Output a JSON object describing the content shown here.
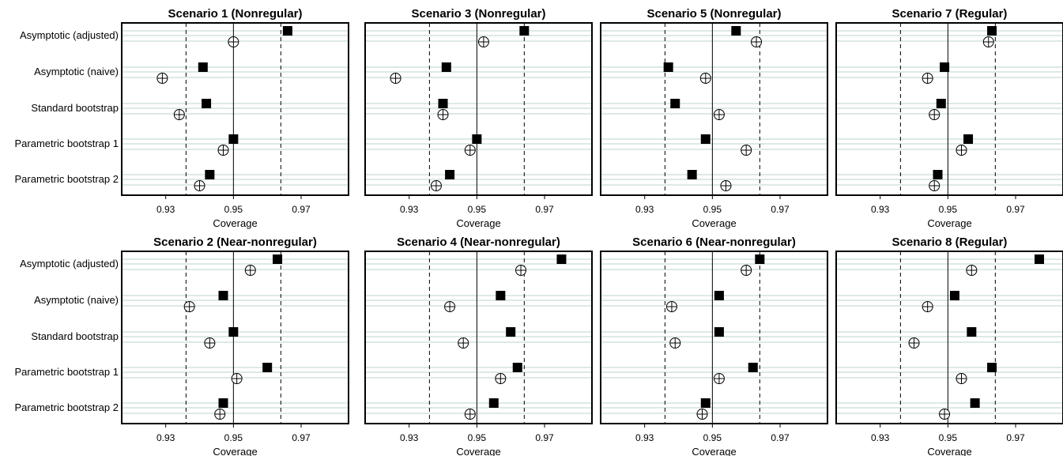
{
  "colors": {
    "band": "#dde9e5",
    "frame": "#000000",
    "marker_fill": "#000000",
    "open_marker_fill": "#ffffff"
  },
  "legend_symbols": {
    "filled_square": "filled-square-marker",
    "open_circle_cross": "open-circle-crosshair-marker"
  },
  "chart_data": [
    {
      "type": "scatter",
      "panel": "scenario-1",
      "title": "Scenario 1 (Nonregular)",
      "xlabel": "Coverage",
      "xlim": [
        0.917,
        0.984
      ],
      "xticks": [
        0.93,
        0.95,
        0.97
      ],
      "reference_lines": {
        "solid": 0.95,
        "dashed": [
          0.936,
          0.964
        ]
      },
      "categories": [
        "Asymptotic (adjusted)",
        "Asymptotic (naive)",
        "Standard bootstrap",
        "Parametric bootstrap 1",
        "Parametric bootstrap 2"
      ],
      "series": [
        {
          "name": "filled-square",
          "values": [
            0.966,
            0.941,
            0.942,
            0.95,
            0.943
          ]
        },
        {
          "name": "open-circle",
          "values": [
            0.95,
            0.929,
            0.934,
            0.947,
            0.94
          ]
        }
      ]
    },
    {
      "type": "scatter",
      "panel": "scenario-3",
      "title": "Scenario 3 (Nonregular)",
      "xlabel": "Coverage",
      "xlim": [
        0.917,
        0.984
      ],
      "xticks": [
        0.93,
        0.95,
        0.97
      ],
      "reference_lines": {
        "solid": 0.95,
        "dashed": [
          0.936,
          0.964
        ]
      },
      "categories": [
        "Asymptotic (adjusted)",
        "Asymptotic (naive)",
        "Standard bootstrap",
        "Parametric bootstrap 1",
        "Parametric bootstrap 2"
      ],
      "series": [
        {
          "name": "filled-square",
          "values": [
            0.964,
            0.941,
            0.94,
            0.95,
            0.942
          ]
        },
        {
          "name": "open-circle",
          "values": [
            0.952,
            0.926,
            0.94,
            0.948,
            0.938
          ]
        }
      ]
    },
    {
      "type": "scatter",
      "panel": "scenario-5",
      "title": "Scenario 5 (Nonregular)",
      "xlabel": "Coverage",
      "xlim": [
        0.917,
        0.984
      ],
      "xticks": [
        0.93,
        0.95,
        0.97
      ],
      "reference_lines": {
        "solid": 0.95,
        "dashed": [
          0.936,
          0.964
        ]
      },
      "categories": [
        "Asymptotic (adjusted)",
        "Asymptotic (naive)",
        "Standard bootstrap",
        "Parametric bootstrap 1",
        "Parametric bootstrap 2"
      ],
      "series": [
        {
          "name": "filled-square",
          "values": [
            0.957,
            0.937,
            0.939,
            0.948,
            0.944
          ]
        },
        {
          "name": "open-circle",
          "values": [
            0.963,
            0.948,
            0.952,
            0.96,
            0.954
          ]
        }
      ]
    },
    {
      "type": "scatter",
      "panel": "scenario-7",
      "title": "Scenario 7 (Regular)",
      "xlabel": "Coverage",
      "xlim": [
        0.917,
        0.984
      ],
      "xticks": [
        0.93,
        0.95,
        0.97
      ],
      "reference_lines": {
        "solid": 0.95,
        "dashed": [
          0.936,
          0.964
        ]
      },
      "categories": [
        "Asymptotic (adjusted)",
        "Asymptotic (naive)",
        "Standard bootstrap",
        "Parametric bootstrap 1",
        "Parametric bootstrap 2"
      ],
      "series": [
        {
          "name": "filled-square",
          "values": [
            0.963,
            0.949,
            0.948,
            0.956,
            0.947
          ]
        },
        {
          "name": "open-circle",
          "values": [
            0.962,
            0.944,
            0.946,
            0.954,
            0.946
          ]
        }
      ]
    },
    {
      "type": "scatter",
      "panel": "scenario-2",
      "title": "Scenario 2 (Near-nonregular)",
      "xlabel": "Coverage",
      "xlim": [
        0.917,
        0.984
      ],
      "xticks": [
        0.93,
        0.95,
        0.97
      ],
      "reference_lines": {
        "solid": 0.95,
        "dashed": [
          0.936,
          0.964
        ]
      },
      "categories": [
        "Asymptotic (adjusted)",
        "Asymptotic (naive)",
        "Standard bootstrap",
        "Parametric bootstrap 1",
        "Parametric bootstrap 2"
      ],
      "series": [
        {
          "name": "filled-square",
          "values": [
            0.963,
            0.947,
            0.95,
            0.96,
            0.947
          ]
        },
        {
          "name": "open-circle",
          "values": [
            0.955,
            0.937,
            0.943,
            0.951,
            0.946
          ]
        }
      ]
    },
    {
      "type": "scatter",
      "panel": "scenario-4",
      "title": "Scenario 4 (Near-nonregular)",
      "xlabel": "Coverage",
      "xlim": [
        0.917,
        0.984
      ],
      "xticks": [
        0.93,
        0.95,
        0.97
      ],
      "reference_lines": {
        "solid": 0.95,
        "dashed": [
          0.936,
          0.964
        ]
      },
      "categories": [
        "Asymptotic (adjusted)",
        "Asymptotic (naive)",
        "Standard bootstrap",
        "Parametric bootstrap 1",
        "Parametric bootstrap 2"
      ],
      "series": [
        {
          "name": "filled-square",
          "values": [
            0.975,
            0.957,
            0.96,
            0.962,
            0.955
          ]
        },
        {
          "name": "open-circle",
          "values": [
            0.963,
            0.942,
            0.946,
            0.957,
            0.948
          ]
        }
      ]
    },
    {
      "type": "scatter",
      "panel": "scenario-6",
      "title": "Scenario 6 (Near-nonregular)",
      "xlabel": "Coverage",
      "xlim": [
        0.917,
        0.984
      ],
      "xticks": [
        0.93,
        0.95,
        0.97
      ],
      "reference_lines": {
        "solid": 0.95,
        "dashed": [
          0.936,
          0.964
        ]
      },
      "categories": [
        "Asymptotic (adjusted)",
        "Asymptotic (naive)",
        "Standard bootstrap",
        "Parametric bootstrap 1",
        "Parametric bootstrap 2"
      ],
      "series": [
        {
          "name": "filled-square",
          "values": [
            0.964,
            0.952,
            0.952,
            0.962,
            0.948
          ]
        },
        {
          "name": "open-circle",
          "values": [
            0.96,
            0.938,
            0.939,
            0.952,
            0.947
          ]
        }
      ]
    },
    {
      "type": "scatter",
      "panel": "scenario-8",
      "title": "Scenario 8 (Regular)",
      "xlabel": "Coverage",
      "xlim": [
        0.917,
        0.984
      ],
      "xticks": [
        0.93,
        0.95,
        0.97
      ],
      "reference_lines": {
        "solid": 0.95,
        "dashed": [
          0.936,
          0.964
        ]
      },
      "categories": [
        "Asymptotic (adjusted)",
        "Asymptotic (naive)",
        "Standard bootstrap",
        "Parametric bootstrap 1",
        "Parametric bootstrap 2"
      ],
      "series": [
        {
          "name": "filled-square",
          "values": [
            0.977,
            0.952,
            0.957,
            0.963,
            0.958
          ]
        },
        {
          "name": "open-circle",
          "values": [
            0.957,
            0.944,
            0.94,
            0.954,
            0.949
          ]
        }
      ]
    }
  ]
}
